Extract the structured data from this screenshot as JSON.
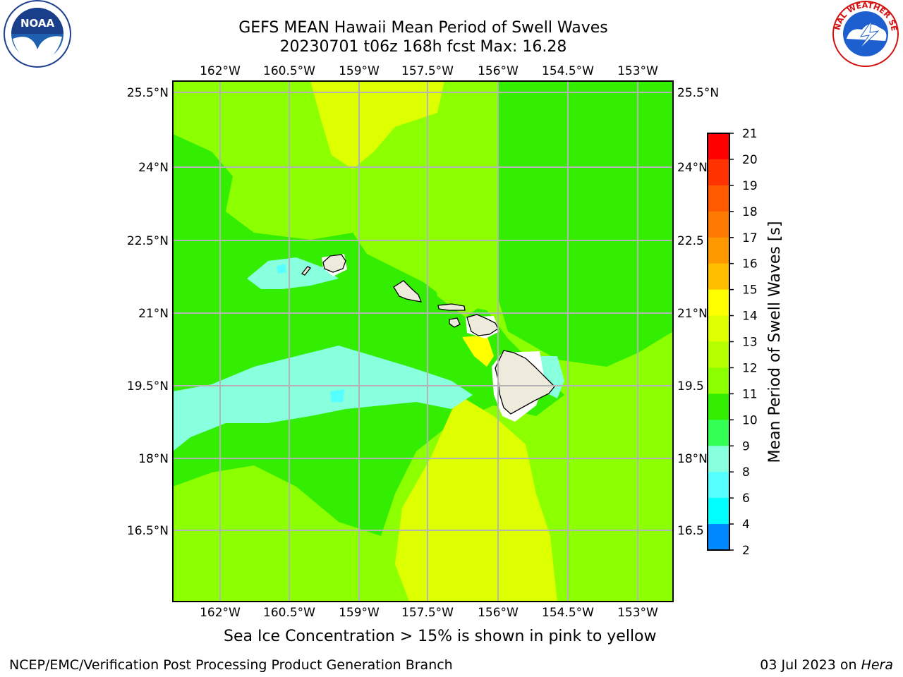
{
  "title_line1": "GEFS MEAN Hawaii Mean Period of Swell Waves",
  "title_line2": "20230701 t06z 168h fcst   Max: 16.28",
  "caption": "Sea Ice Concentration > 15% is shown in pink to yellow",
  "footer_left": "NCEP/EMC/Verification Post Processing Product Generation Branch",
  "footer_date": "03 Jul 2023 on ",
  "footer_machine": "Hera",
  "logos": {
    "left": "noaa-logo",
    "right": "nws-logo",
    "noaa_text": "NOAA",
    "nws_ring_text": "NATIONAL WEATHER SERVICE"
  },
  "map": {
    "lon_labels": [
      "162°W",
      "160.5°W",
      "159°W",
      "157.5°W",
      "156°W",
      "154.5°W",
      "153°W"
    ],
    "lat_labels": [
      "25.5°N",
      "24°N",
      "22.5°N",
      "21°N",
      "19.5°N",
      "18°N",
      "16.5°N"
    ],
    "right_lat_labels": [
      "25.5°N",
      "24°N",
      "22.5",
      "21°N",
      "19.5",
      "18°N",
      "16.5"
    ],
    "ocean_color": "#8cff00",
    "land_color": "#eeeadc"
  },
  "colorbar": {
    "label": "Mean Period of Swell Waves [s]",
    "ticks": [
      "21",
      "20",
      "19",
      "18",
      "17",
      "16",
      "15",
      "14",
      "13",
      "12",
      "11",
      "10",
      "9",
      "8",
      "6",
      "4",
      "2"
    ],
    "colors_top_to_bottom": [
      "#ff0000",
      "#ff3300",
      "#ff5a00",
      "#ff7a00",
      "#ff9900",
      "#ffbf00",
      "#ffff00",
      "#ddff00",
      "#b4ff00",
      "#8cff00",
      "#33ee00",
      "#33ff55",
      "#88ffdd",
      "#55ffff",
      "#00ffff",
      "#0088ff",
      "#0000ff"
    ]
  }
}
